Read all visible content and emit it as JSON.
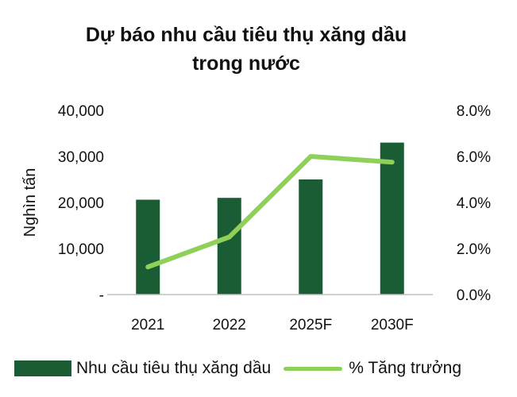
{
  "chart_data": {
    "type": "bar",
    "title_line1": "Dự báo nhu cầu tiêu thụ xăng dầu",
    "title_line2": "trong nước",
    "ylabel": "Nghìn tấn",
    "categories": [
      "2021",
      "2022",
      "2025F",
      "2030F"
    ],
    "series": [
      {
        "name": "Nhu cầu tiêu thụ xăng dầu",
        "type": "bar",
        "axis": "left",
        "values": [
          20600,
          21000,
          25000,
          33000
        ]
      },
      {
        "name": "% Tăng trưởng",
        "type": "line",
        "axis": "right",
        "values": [
          1.2,
          2.5,
          6.0,
          5.75
        ]
      }
    ],
    "ylim_left": [
      0,
      40000
    ],
    "ylim_right": [
      0,
      8
    ],
    "left_ticks": [
      "-",
      "10,000",
      "20,000",
      "30,000",
      "40,000"
    ],
    "right_ticks": [
      "0.0%",
      "2.0%",
      "4.0%",
      "6.0%",
      "8.0%"
    ],
    "grid": false,
    "legend_position": "bottom"
  },
  "colors": {
    "bar": "#1a5c34",
    "line": "#8fd05a",
    "axis": "#bfbfbf"
  }
}
